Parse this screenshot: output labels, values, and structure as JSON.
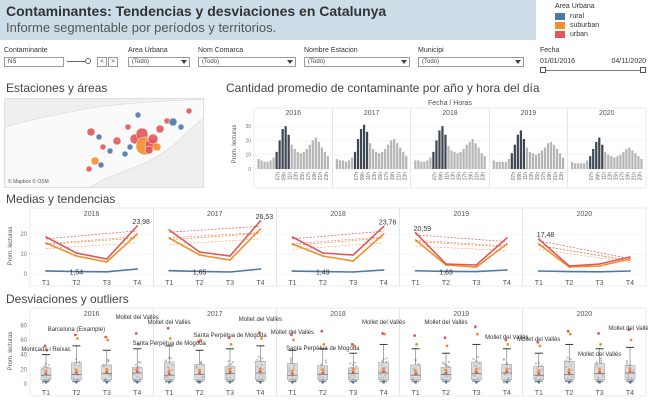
{
  "header": {
    "title": "Contaminantes: Tendencias y desviaciones en Catalunya",
    "subtitle": "Informe segmentable por períodos y territorios."
  },
  "legend": {
    "title": "Area Urbana",
    "items": [
      {
        "label": "rural",
        "color": "#4e79a7"
      },
      {
        "label": "suburban",
        "color": "#f28e2b"
      },
      {
        "label": "urban",
        "color": "#e15759"
      }
    ]
  },
  "filters": {
    "contaminante": {
      "label": "Contaminante",
      "value": "NS",
      "prev": "<",
      "next": ">"
    },
    "area_urbana": {
      "label": "Area Urbana",
      "value": "(Todo)"
    },
    "nom_comarca": {
      "label": "Nom Comarca",
      "value": "(Todo)"
    },
    "nombre_estacion": {
      "label": "Nombre Estacion",
      "value": "(Todo)"
    },
    "municipi": {
      "label": "Municipi",
      "value": "(Todo)"
    },
    "fecha": {
      "label": "Fecha",
      "start": "01/01/2016",
      "end": "04/11/2020"
    }
  },
  "sections": {
    "map": "Estaciones y áreas",
    "avg": "Cantidad promedio de contaminante por año y hora del día",
    "trends": "Medias y tendencias",
    "outliers": "Desviaciones y outliers"
  },
  "map": {
    "attribution": "© Mapbox © OSM"
  },
  "colors": {
    "rural": "#4e79a7",
    "suburban": "#f28e2b",
    "urban": "#e15759",
    "bar_dark": "#3d4753",
    "bar_light": "#b5b5b5"
  },
  "avg_chart": {
    "header": "Fecha / Horas",
    "ylabel": "Prom. lecturas",
    "years": [
      "2016",
      "2017",
      "2018",
      "2019",
      "2020"
    ],
    "hour_labels": [
      "07h",
      "09h",
      "11h",
      "13h",
      "15h",
      "17h",
      "19h",
      "21h",
      "23h"
    ],
    "y_ticks": [
      "0",
      "10",
      "20",
      "30"
    ]
  },
  "trends": {
    "ylabel": "Prom. lecturas",
    "years": [
      "2016",
      "2017",
      "2018",
      "2019",
      "2020"
    ],
    "quarters": [
      "T1",
      "T2",
      "T3",
      "T4"
    ],
    "y_ticks": [
      "0",
      "10",
      "20"
    ]
  },
  "outliers": {
    "ylabel": "Prom. lecturas",
    "years": [
      "2016",
      "2017",
      "2018",
      "2019",
      "2020"
    ],
    "quarters": [
      "T1",
      "T2",
      "T3",
      "T4"
    ],
    "y_ticks": [
      "0",
      "20",
      "40",
      "60",
      "80"
    ],
    "labels": [
      {
        "text": "Mollet del Vallès",
        "panel": 0,
        "q": 3,
        "dy": -9
      },
      {
        "text": "Barcelona (Eixample)",
        "panel": 0,
        "q": 1,
        "dy": 3
      },
      {
        "text": "Montcada i Reixac",
        "panel": 0,
        "q": 0,
        "dy": 23
      },
      {
        "text": "Mollet del Vallès",
        "panel": 1,
        "q": 0,
        "dy": -4
      },
      {
        "text": "Mollet del Vallès",
        "panel": 1,
        "q": 3,
        "dy": -7
      },
      {
        "text": "Santa Perpètua de Mogoda",
        "panel": 1,
        "q": 2,
        "dy": 9
      },
      {
        "text": "Santa Perpètua de Mogoda",
        "panel": 1,
        "q": 0,
        "dy": 17
      },
      {
        "text": "Mollet del Vallès",
        "panel": 2,
        "q": 0,
        "dy": 6
      },
      {
        "text": "Mollet del Vallès",
        "panel": 2,
        "q": 3,
        "dy": -4
      },
      {
        "text": "Santa Perpètua de Mogoda",
        "panel": 2,
        "q": 1,
        "dy": 22
      },
      {
        "text": "Mollet del Vallès",
        "panel": 3,
        "q": 1,
        "dy": -4
      },
      {
        "text": "Mollet del Vallès",
        "panel": 3,
        "q": 3,
        "dy": 11
      },
      {
        "text": "Mollet del Vallès",
        "panel": 4,
        "q": 0,
        "dy": 13
      },
      {
        "text": "Mollet del Vallès",
        "panel": 4,
        "q": 2,
        "dy": 28
      },
      {
        "text": "Mollet del Vallès",
        "panel": 4,
        "q": 3,
        "dy": 2
      }
    ]
  },
  "chart_data": [
    {
      "type": "bar",
      "title": "Cantidad promedio de contaminante por año y hora del día",
      "xlabel": "Fecha / Horas",
      "ylabel": "Prom. lecturas",
      "ylim": [
        0,
        35
      ],
      "categories_per_panel": [
        "00h",
        "01h",
        "02h",
        "03h",
        "04h",
        "05h",
        "06h",
        "07h",
        "08h",
        "09h",
        "10h",
        "11h",
        "12h",
        "13h",
        "14h",
        "15h",
        "16h",
        "17h",
        "18h",
        "19h",
        "20h",
        "21h",
        "22h",
        "23h"
      ],
      "series": [
        {
          "name": "2016",
          "values": [
            7,
            6,
            5,
            5,
            6,
            8,
            12,
            20,
            28,
            30,
            24,
            17,
            14,
            12,
            11,
            12,
            14,
            17,
            20,
            22,
            19,
            15,
            12,
            9
          ]
        },
        {
          "name": "2017",
          "values": [
            7,
            6,
            6,
            5,
            6,
            8,
            12,
            21,
            28,
            31,
            26,
            18,
            14,
            12,
            11,
            12,
            14,
            17,
            20,
            21,
            18,
            15,
            12,
            9
          ]
        },
        {
          "name": "2018",
          "values": [
            6,
            6,
            5,
            5,
            6,
            8,
            12,
            20,
            27,
            30,
            24,
            16,
            13,
            12,
            11,
            12,
            14,
            17,
            19,
            21,
            18,
            15,
            11,
            9
          ]
        },
        {
          "name": "2019",
          "values": [
            6,
            5,
            5,
            5,
            5,
            7,
            11,
            17,
            24,
            27,
            21,
            15,
            12,
            11,
            10,
            11,
            13,
            15,
            18,
            19,
            17,
            14,
            11,
            8
          ]
        },
        {
          "name": "2020",
          "values": [
            5,
            4,
            4,
            4,
            4,
            6,
            9,
            14,
            19,
            22,
            17,
            12,
            10,
            9,
            8,
            9,
            10,
            12,
            14,
            15,
            13,
            11,
            9,
            7
          ]
        }
      ]
    },
    {
      "type": "line",
      "title": "Medias y tendencias",
      "ylabel": "Prom. lecturas",
      "ylim": [
        0,
        28
      ],
      "categories": [
        "T1",
        "T2",
        "T3",
        "T4"
      ],
      "panels": [
        "2016",
        "2017",
        "2018",
        "2019",
        "2020"
      ],
      "series": [
        {
          "name": "urban",
          "values": [
            [
              18.5,
              10.5,
              7.5,
              23.98
            ],
            [
              22,
              11,
              9,
              26.53
            ],
            [
              18.5,
              10.5,
              9.5,
              23.76
            ],
            [
              20.59,
              5,
              4.5,
              18
            ],
            [
              17.48,
              4,
              5,
              8.5
            ]
          ]
        },
        {
          "name": "suburban",
          "values": [
            [
              15.5,
              9,
              6,
              20
            ],
            [
              18,
              9.5,
              7,
              22.5
            ],
            [
              15,
              9,
              6.5,
              20
            ],
            [
              17,
              4.5,
              3.5,
              15
            ],
            [
              15,
              3.5,
              4,
              7.5
            ]
          ]
        },
        {
          "name": "rural",
          "values": [
            [
              1.54,
              1.2,
              1.1,
              2.5
            ],
            [
              1.65,
              1.3,
              1,
              2.5
            ],
            [
              1.49,
              1.2,
              1,
              2
            ],
            [
              1.63,
              1.3,
              1.2,
              2
            ],
            [
              1.5,
              1.2,
              1.1,
              1.5
            ]
          ]
        }
      ],
      "data_labels": [
        "23,98",
        "1,54",
        "26,53",
        "1,65",
        "23,76",
        "1,49",
        "20,59",
        "1,63",
        "17,48"
      ]
    },
    {
      "type": "box",
      "title": "Desviaciones y outliers",
      "ylabel": "Prom. lecturas",
      "ylim": [
        0,
        90
      ],
      "categories": [
        "T1",
        "T2",
        "T3",
        "T4"
      ],
      "panels": [
        "2016",
        "2017",
        "2018",
        "2019",
        "2020"
      ]
    }
  ]
}
